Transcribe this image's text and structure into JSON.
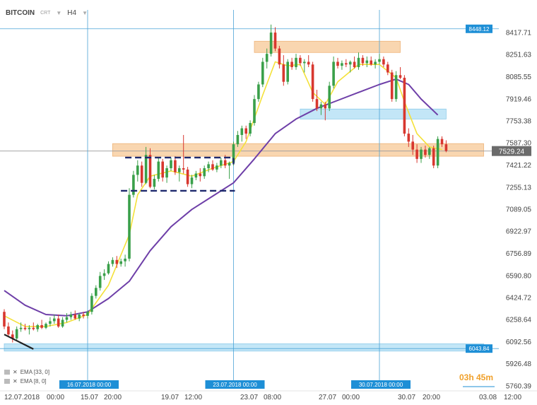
{
  "header": {
    "symbol": "BITCOIN",
    "type": "CRT",
    "timeframe": "H4"
  },
  "legend": [
    "EMA [33, 0]",
    "EMA [8, 0]"
  ],
  "countdown": "03h 45m",
  "colors": {
    "up": "#3aa04a",
    "down": "#d8372f",
    "ema_fast": "#f4e13a",
    "ema_slow": "#6e3fa8",
    "orange_zone": "#f7cc9c",
    "blue_zone": "#bde3f6",
    "vline": "#4ba3d6",
    "label_bg": "#1e8fd6"
  },
  "chart_data": {
    "type": "candlestick",
    "title": "BITCOIN H4",
    "ylim": [
      5760.39,
      8517.71
    ],
    "y_ticks": [
      "8417.71",
      "8251.63",
      "8085.55",
      "7919.46",
      "7753.38",
      "7587.30",
      "7421.22",
      "7255.13",
      "7089.05",
      "6922.97",
      "6756.89",
      "6590.80",
      "6424.72",
      "6258.64",
      "6092.56",
      "5926.48",
      "5760.39"
    ],
    "x_labels": [
      "12.07.2018",
      "00:00",
      "15.07",
      "20:00",
      "19.07",
      "12:00",
      "23.07",
      "08:00",
      "27.07",
      "00:00",
      "30.07",
      "20:00",
      "03.08",
      "12:00"
    ],
    "price_lines": [
      {
        "value": 8448.12,
        "label": "8448.12"
      },
      {
        "value": 7529.24,
        "label": "7529.24",
        "current": true
      },
      {
        "value": 6043.84,
        "label": "6043.84"
      }
    ],
    "vertical_markers": [
      {
        "label": "16.07.2018 00:00",
        "candle": 20
      },
      {
        "label": "23.07.2018 00:00",
        "candle": 55
      },
      {
        "label": "30.07.2018 00:00",
        "candle": 90
      }
    ],
    "zones": [
      {
        "color": "orange",
        "x1": 60,
        "x2": 95,
        "y1": 8270,
        "y2": 8355
      },
      {
        "color": "orange",
        "x1": 26,
        "x2": 115,
        "y1": 7490,
        "y2": 7585
      },
      {
        "color": "blue",
        "x1": 71,
        "x2": 106,
        "y1": 7770,
        "y2": 7845
      },
      {
        "color": "blue",
        "x1": 0,
        "x2": 115,
        "y1": 6025,
        "y2": 6080
      }
    ],
    "dashed_box": {
      "x1": 29,
      "x2": 55,
      "y_top": 7480,
      "y_bottom": 7230
    },
    "trend_segment": {
      "x1": 0,
      "y1": 6150,
      "x2": 7,
      "y2": 6040
    },
    "candles": [
      [
        6320,
        6340,
        6190,
        6210
      ],
      [
        6210,
        6240,
        6130,
        6150
      ],
      [
        6150,
        6180,
        6090,
        6120
      ],
      [
        6120,
        6210,
        6100,
        6190
      ],
      [
        6190,
        6240,
        6170,
        6200
      ],
      [
        6200,
        6230,
        6180,
        6190
      ],
      [
        6190,
        6220,
        6150,
        6200
      ],
      [
        6200,
        6240,
        6180,
        6190
      ],
      [
        6190,
        6230,
        6170,
        6220
      ],
      [
        6220,
        6260,
        6190,
        6200
      ],
      [
        6200,
        6240,
        6190,
        6230
      ],
      [
        6230,
        6280,
        6210,
        6250
      ],
      [
        6250,
        6300,
        6230,
        6270
      ],
      [
        6270,
        6300,
        6200,
        6210
      ],
      [
        6210,
        6280,
        6200,
        6260
      ],
      [
        6260,
        6310,
        6240,
        6280
      ],
      [
        6280,
        6320,
        6260,
        6300
      ],
      [
        6300,
        6330,
        6260,
        6270
      ],
      [
        6270,
        6310,
        6250,
        6300
      ],
      [
        6300,
        6320,
        6270,
        6290
      ],
      [
        6290,
        6330,
        6270,
        6320
      ],
      [
        6320,
        6460,
        6300,
        6440
      ],
      [
        6440,
        6520,
        6420,
        6500
      ],
      [
        6500,
        6620,
        6480,
        6590
      ],
      [
        6590,
        6640,
        6560,
        6610
      ],
      [
        6610,
        6700,
        6600,
        6680
      ],
      [
        6680,
        6730,
        6660,
        6710
      ],
      [
        6710,
        6740,
        6650,
        6680
      ],
      [
        6680,
        6720,
        6660,
        6700
      ],
      [
        6700,
        6750,
        6660,
        6720
      ],
      [
        6720,
        7250,
        6700,
        7200
      ],
      [
        7200,
        7380,
        7180,
        7350
      ],
      [
        7350,
        7460,
        7300,
        7420
      ],
      [
        7420,
        7450,
        7260,
        7290
      ],
      [
        7290,
        7560,
        7280,
        7500
      ],
      [
        7500,
        7550,
        7250,
        7260
      ],
      [
        7260,
        7350,
        7240,
        7320
      ],
      [
        7320,
        7480,
        7300,
        7450
      ],
      [
        7450,
        7470,
        7300,
        7330
      ],
      [
        7330,
        7420,
        7290,
        7400
      ],
      [
        7400,
        7480,
        7380,
        7460
      ],
      [
        7460,
        7490,
        7350,
        7370
      ],
      [
        7370,
        7420,
        7300,
        7400
      ],
      [
        7400,
        7650,
        7360,
        7390
      ],
      [
        7390,
        7410,
        7260,
        7280
      ],
      [
        7280,
        7350,
        7250,
        7330
      ],
      [
        7330,
        7380,
        7310,
        7360
      ],
      [
        7360,
        7400,
        7300,
        7340
      ],
      [
        7340,
        7420,
        7320,
        7400
      ],
      [
        7400,
        7450,
        7370,
        7430
      ],
      [
        7430,
        7460,
        7380,
        7390
      ],
      [
        7390,
        7440,
        7370,
        7420
      ],
      [
        7420,
        7480,
        7400,
        7460
      ],
      [
        7460,
        7500,
        7400,
        7420
      ],
      [
        7420,
        7450,
        7320,
        7440
      ],
      [
        7440,
        7600,
        7420,
        7580
      ],
      [
        7580,
        7680,
        7560,
        7650
      ],
      [
        7650,
        7720,
        7600,
        7700
      ],
      [
        7700,
        7720,
        7620,
        7660
      ],
      [
        7660,
        7760,
        7640,
        7740
      ],
      [
        7740,
        7950,
        7720,
        7920
      ],
      [
        7920,
        8050,
        7900,
        8030
      ],
      [
        8030,
        8230,
        8010,
        8200
      ],
      [
        8200,
        8300,
        8150,
        8260
      ],
      [
        8260,
        8480,
        8240,
        8420
      ],
      [
        8420,
        8460,
        8280,
        8300
      ],
      [
        8300,
        8320,
        8150,
        8180
      ],
      [
        8180,
        8250,
        8020,
        8050
      ],
      [
        8050,
        8220,
        8030,
        8200
      ],
      [
        8200,
        8230,
        8140,
        8160
      ],
      [
        8160,
        8260,
        8140,
        8230
      ],
      [
        8230,
        8250,
        8170,
        8190
      ],
      [
        8190,
        8220,
        8120,
        8200
      ],
      [
        8200,
        8250,
        8160,
        8180
      ],
      [
        8180,
        8200,
        7900,
        7920
      ],
      [
        7920,
        7990,
        7830,
        7850
      ],
      [
        7850,
        7900,
        7800,
        7880
      ],
      [
        7880,
        7900,
        7760,
        7850
      ],
      [
        7850,
        8050,
        7830,
        8020
      ],
      [
        8020,
        8240,
        8000,
        8200
      ],
      [
        8200,
        8230,
        8150,
        8170
      ],
      [
        8170,
        8210,
        8140,
        8190
      ],
      [
        8190,
        8220,
        8160,
        8180
      ],
      [
        8180,
        8210,
        8120,
        8200
      ],
      [
        8200,
        8240,
        8150,
        8160
      ],
      [
        8160,
        8270,
        8140,
        8230
      ],
      [
        8230,
        8250,
        8170,
        8190
      ],
      [
        8190,
        8240,
        8160,
        8210
      ],
      [
        8210,
        8240,
        8170,
        8180
      ],
      [
        8180,
        8220,
        8150,
        8200
      ],
      [
        8200,
        8260,
        8180,
        8220
      ],
      [
        8220,
        8240,
        8160,
        8180
      ],
      [
        8180,
        8200,
        8100,
        8120
      ],
      [
        8120,
        8140,
        7900,
        7920
      ],
      [
        7920,
        8130,
        7900,
        8100
      ],
      [
        8100,
        8160,
        8070,
        8080
      ],
      [
        8080,
        8100,
        7640,
        7660
      ],
      [
        7660,
        7700,
        7560,
        7600
      ],
      [
        7600,
        7650,
        7500,
        7540
      ],
      [
        7540,
        7580,
        7440,
        7470
      ],
      [
        7470,
        7560,
        7440,
        7540
      ],
      [
        7540,
        7570,
        7480,
        7500
      ],
      [
        7500,
        7560,
        7470,
        7550
      ],
      [
        7550,
        7570,
        7400,
        7420
      ],
      [
        7420,
        7640,
        7400,
        7620
      ],
      [
        7620,
        7640,
        7560,
        7580
      ],
      [
        7580,
        7610,
        7520,
        7530
      ]
    ],
    "series": [
      {
        "name": "EMA [33, 0]",
        "color": "#6e3fa8",
        "points": [
          [
            0,
            6480
          ],
          [
            5,
            6370
          ],
          [
            10,
            6300
          ],
          [
            15,
            6290
          ],
          [
            20,
            6320
          ],
          [
            25,
            6420
          ],
          [
            30,
            6550
          ],
          [
            35,
            6780
          ],
          [
            40,
            6960
          ],
          [
            45,
            7090
          ],
          [
            50,
            7190
          ],
          [
            55,
            7290
          ],
          [
            60,
            7470
          ],
          [
            65,
            7660
          ],
          [
            70,
            7770
          ],
          [
            75,
            7850
          ],
          [
            80,
            7910
          ],
          [
            85,
            7970
          ],
          [
            90,
            8030
          ],
          [
            94,
            8070
          ],
          [
            97,
            8030
          ],
          [
            100,
            7920
          ],
          [
            104,
            7800
          ]
        ]
      },
      {
        "name": "EMA [8, 0]",
        "color": "#f4e13a",
        "points": [
          [
            0,
            6290
          ],
          [
            5,
            6210
          ],
          [
            10,
            6210
          ],
          [
            15,
            6240
          ],
          [
            20,
            6300
          ],
          [
            25,
            6520
          ],
          [
            30,
            6900
          ],
          [
            32,
            7200
          ],
          [
            35,
            7340
          ],
          [
            40,
            7380
          ],
          [
            45,
            7340
          ],
          [
            50,
            7400
          ],
          [
            55,
            7450
          ],
          [
            58,
            7600
          ],
          [
            62,
            7950
          ],
          [
            65,
            8200
          ],
          [
            68,
            8170
          ],
          [
            71,
            8180
          ],
          [
            74,
            7970
          ],
          [
            77,
            7880
          ],
          [
            80,
            8050
          ],
          [
            85,
            8180
          ],
          [
            90,
            8180
          ],
          [
            94,
            8080
          ],
          [
            96,
            7900
          ],
          [
            99,
            7660
          ],
          [
            102,
            7560
          ],
          [
            105,
            7540
          ]
        ]
      }
    ]
  }
}
